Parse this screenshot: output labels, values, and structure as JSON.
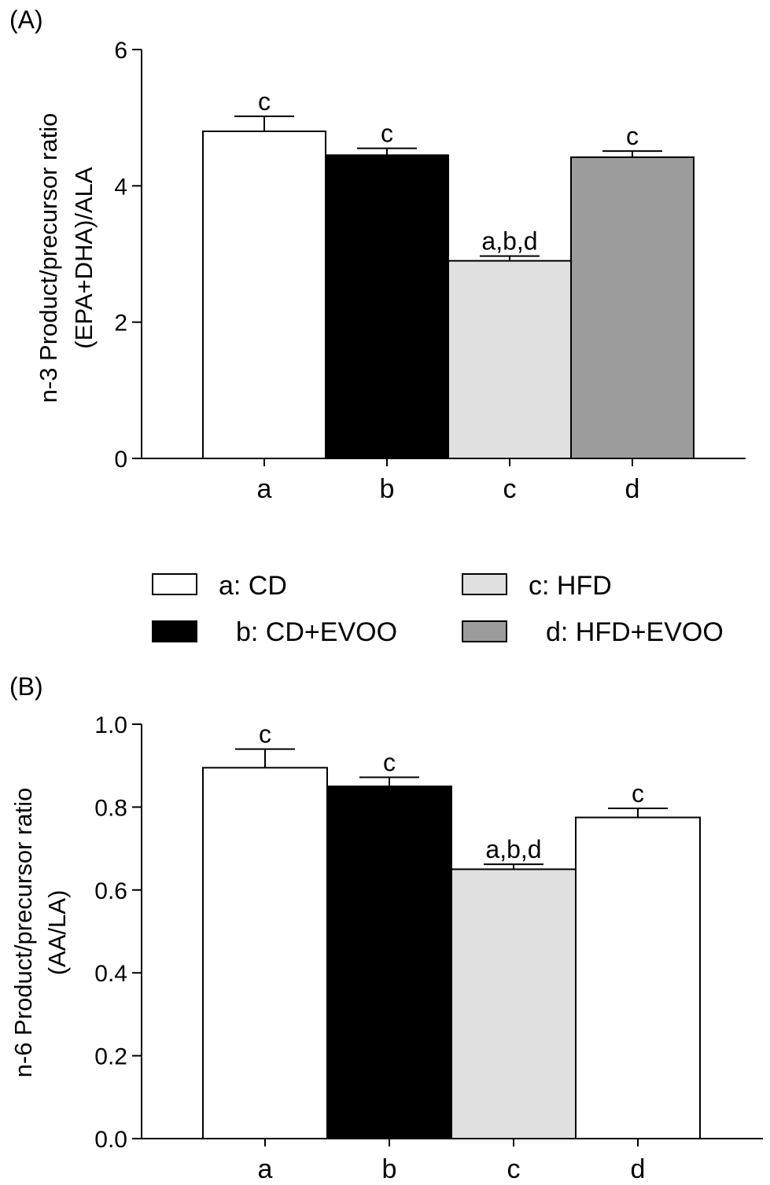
{
  "colors": {
    "a": "#ffffff",
    "b": "#000000",
    "c": "#e0e0e0",
    "d_panelA": "#9c9c9c",
    "d_panelB": "#ffffff"
  },
  "legend": [
    {
      "key": "a",
      "label": "a: CD",
      "color": "#ffffff"
    },
    {
      "key": "c",
      "label": "c: HFD",
      "color": "#e0e0e0"
    },
    {
      "key": "b",
      "label": "b: CD+EVOO",
      "color": "#000000"
    },
    {
      "key": "d",
      "label": "d: HFD+EVOO",
      "color": "#9c9c9c"
    }
  ],
  "chart_data": [
    {
      "type": "bar",
      "panel_label": "(A)",
      "ylabel_line1": "n-3 Product/precursor ratio",
      "ylabel_line2": "(EPA+DHA)/ALA",
      "categories": [
        "a",
        "b",
        "c",
        "d"
      ],
      "values": [
        4.8,
        4.45,
        2.9,
        4.42
      ],
      "errors": [
        0.22,
        0.1,
        0.07,
        0.09
      ],
      "significance": [
        "c",
        "c",
        "a,b,d",
        "c"
      ],
      "ylim": [
        0,
        6
      ],
      "yticks": [
        "0",
        "2",
        "4",
        "6"
      ],
      "ytick_values": [
        0,
        2,
        4,
        6
      ]
    },
    {
      "type": "bar",
      "panel_label": "(B)",
      "ylabel_line1": "n-6 Product/precursor ratio",
      "ylabel_line2": "(AA/LA)",
      "categories": [
        "a",
        "b",
        "c",
        "d"
      ],
      "values": [
        0.895,
        0.85,
        0.65,
        0.775
      ],
      "errors": [
        0.045,
        0.022,
        0.012,
        0.022
      ],
      "significance": [
        "c",
        "c",
        "a,b,d",
        "c"
      ],
      "ylim": [
        0,
        1.0
      ],
      "yticks": [
        "0.0",
        "0.2",
        "0.4",
        "0.6",
        "0.8",
        "1.0"
      ],
      "ytick_values": [
        0,
        0.2,
        0.4,
        0.6,
        0.8,
        1.0
      ]
    }
  ]
}
